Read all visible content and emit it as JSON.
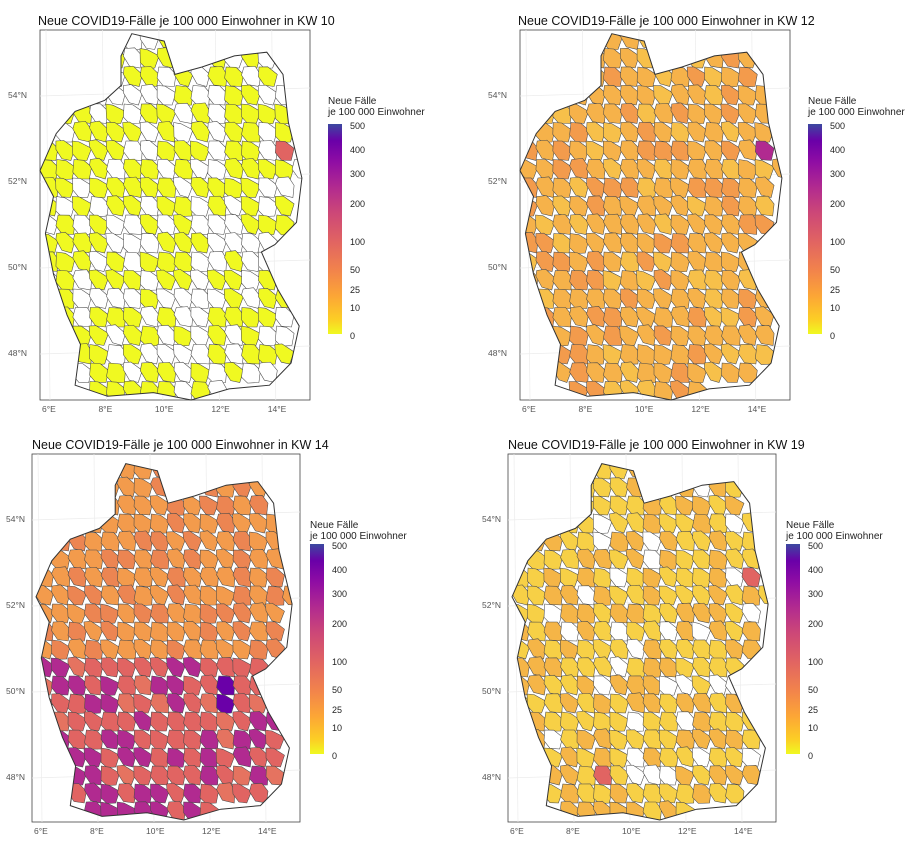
{
  "panels": [
    {
      "title": "Neue COVID19-Fälle je 100 000 Einwohner in KW 10",
      "week": "KW 10"
    },
    {
      "title": "Neue COVID19-Fälle je 100 000 Einwohner in KW 12",
      "week": "KW 12"
    },
    {
      "title": "Neue COVID19-Fälle je 100 000 Einwohner in KW 14",
      "week": "KW 14"
    },
    {
      "title": "Neue COVID19-Fälle je 100 000 Einwohner in KW 19",
      "week": "KW 19"
    }
  ],
  "legend": {
    "title_line1": "Neue Fälle",
    "title_line2": "je 100 000 Einwohner",
    "ticks": [
      "500",
      "400",
      "300",
      "200",
      "100",
      "50",
      "25",
      "10",
      "0"
    ],
    "colors": [
      "#f0f921",
      "#fca636",
      "#e16462",
      "#b12a90",
      "#6a00a8",
      "#3c49a0"
    ]
  },
  "axes": {
    "lat_labels": [
      "54°N",
      "52°N",
      "50°N",
      "48°N"
    ],
    "lon_labels": [
      "6°E",
      "8°E",
      "10°E",
      "12°E",
      "14°E"
    ]
  }
}
